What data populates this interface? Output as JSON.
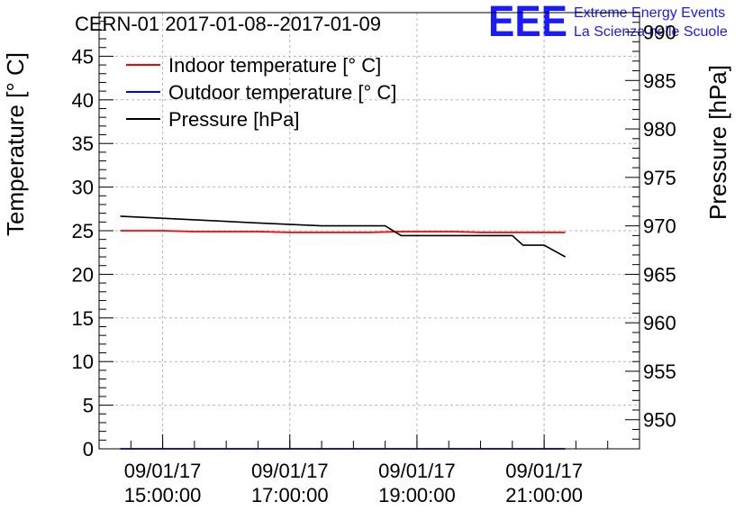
{
  "chart_data": {
    "type": "line",
    "title": "CERN-01 2017-01-08--2017-01-09",
    "brand": {
      "logo": "EEE",
      "line1": "Extreme Energy Events",
      "line2": "La Scienza nelle Scuole"
    },
    "ylabel": "Temperature [° C]",
    "y2label": "Pressure [hPa]",
    "ylim": [
      0,
      50
    ],
    "y2lim": [
      947,
      992
    ],
    "yticks": [
      "0",
      "5",
      "10",
      "15",
      "20",
      "25",
      "30",
      "35",
      "40",
      "45"
    ],
    "y2ticks": [
      "950",
      "955",
      "960",
      "965",
      "970",
      "975",
      "980",
      "985",
      "990"
    ],
    "x_range": [
      "2017-01-09 14:00:00",
      "2017-01-09 22:30:00"
    ],
    "xticks": [
      {
        "date": "09/01/17",
        "time": "15:00:00",
        "at": "2017-01-09 15:00:00"
      },
      {
        "date": "09/01/17",
        "time": "17:00:00",
        "at": "2017-01-09 17:00:00"
      },
      {
        "date": "09/01/17",
        "time": "19:00:00",
        "at": "2017-01-09 19:00:00"
      },
      {
        "date": "09/01/17",
        "time": "21:00:00",
        "at": "2017-01-09 21:00:00"
      }
    ],
    "grid": true,
    "legend_position": "top-left",
    "series": [
      {
        "name": "Indoor temperature [° C]",
        "axis": "left",
        "color": "#ff0000",
        "points": [
          [
            "2017-01-09 14:20:00",
            25.0
          ],
          [
            "2017-01-09 15:00:00",
            25.0
          ],
          [
            "2017-01-09 15:30:00",
            24.9
          ],
          [
            "2017-01-09 16:30:00",
            24.9
          ],
          [
            "2017-01-09 17:00:00",
            24.8
          ],
          [
            "2017-01-09 18:15:00",
            24.8
          ],
          [
            "2017-01-09 18:45:00",
            24.9
          ],
          [
            "2017-01-09 19:35:00",
            24.9
          ],
          [
            "2017-01-09 20:00:00",
            24.8
          ],
          [
            "2017-01-09 21:20:00",
            24.8
          ]
        ]
      },
      {
        "name": "Outdoor temperature [° C]",
        "axis": "left",
        "color": "#0000ff",
        "points": [
          [
            "2017-01-09 14:20:00",
            0.0
          ],
          [
            "2017-01-09 21:20:00",
            0.0
          ]
        ]
      },
      {
        "name": "Pressure [hPa]",
        "axis": "right",
        "color": "#000000",
        "points": [
          [
            "2017-01-09 14:20:00",
            971.0
          ],
          [
            "2017-01-09 16:30:00",
            970.3
          ],
          [
            "2017-01-09 17:30:00",
            970.0
          ],
          [
            "2017-01-09 18:30:00",
            970.0
          ],
          [
            "2017-01-09 18:45:00",
            969.0
          ],
          [
            "2017-01-09 20:30:00",
            969.0
          ],
          [
            "2017-01-09 20:40:00",
            968.0
          ],
          [
            "2017-01-09 21:00:00",
            968.0
          ],
          [
            "2017-01-09 21:20:00",
            966.8
          ]
        ]
      }
    ]
  }
}
